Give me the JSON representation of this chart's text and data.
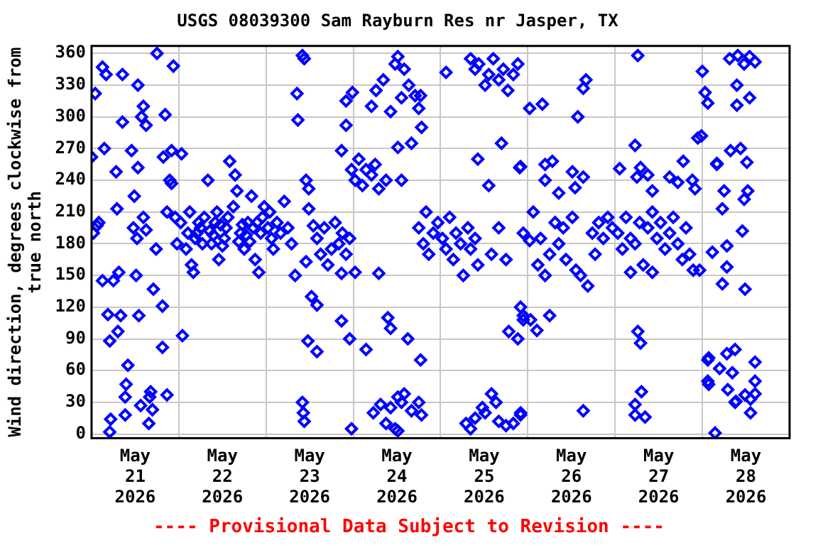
{
  "chart_data": {
    "type": "scatter",
    "title": "USGS 08039300 Sam Rayburn Res nr Jasper, TX",
    "ylabel": "Wind direction, degrees clockwise from true north",
    "annotations": [
      "---- Provisional Data Subject to Revision ----"
    ],
    "xlim": [
      "2026-05-21",
      "2026-05-29"
    ],
    "xticks": [
      {
        "value": "2026-05-21",
        "label": null
      },
      {
        "value": "2026-05-21T12:00",
        "label": "May 21 2026"
      },
      {
        "value": "2026-05-22",
        "label": null
      },
      {
        "value": "2026-05-22T12:00",
        "label": "May 22 2026"
      },
      {
        "value": "2026-05-23",
        "label": null
      },
      {
        "value": "2026-05-23T12:00",
        "label": "May 23 2026"
      },
      {
        "value": "2026-05-24",
        "label": null
      },
      {
        "value": "2026-05-24T12:00",
        "label": "May 24 2026"
      },
      {
        "value": "2026-05-25",
        "label": null
      },
      {
        "value": "2026-05-25T12:00",
        "label": "May 25 2026"
      },
      {
        "value": "2026-05-26",
        "label": null
      },
      {
        "value": "2026-05-26T12:00",
        "label": "May 26 2026"
      },
      {
        "value": "2026-05-27",
        "label": null
      },
      {
        "value": "2026-05-27T12:00",
        "label": "May 27 2026"
      },
      {
        "value": "2026-05-28",
        "label": null
      },
      {
        "value": "2026-05-28T12:00",
        "label": "May 28 2026"
      },
      {
        "value": "2026-05-29",
        "label": null
      }
    ],
    "ylim": [
      -4,
      367
    ],
    "yticks": [
      0,
      30,
      60,
      90,
      120,
      150,
      180,
      210,
      240,
      270,
      300,
      330,
      360
    ],
    "grid": true,
    "marker": "diamond",
    "series": [
      {
        "color": "#0000ff",
        "x": [
          "2026-05-21T00:00",
          "2026-05-21T00:30",
          "2026-05-21T01:00",
          "2026-05-21T01:30",
          "2026-05-21T02:00",
          "2026-05-21T03:00",
          "2026-05-21T03:00",
          "2026-05-21T03:30",
          "2026-05-21T04:00",
          "2026-05-21T04:30",
          "2026-05-21T05:00",
          "2026-05-21T05:00",
          "2026-05-21T05:15",
          "2026-05-21T06:00",
          "2026-05-21T06:45",
          "2026-05-21T07:00",
          "2026-05-21T07:15",
          "2026-05-21T07:30",
          "2026-05-21T08:00",
          "2026-05-21T08:30",
          "2026-05-21T08:30",
          "2026-05-21T09:15",
          "2026-05-21T09:15",
          "2026-05-21T09:30",
          "2026-05-21T10:00",
          "2026-05-21T11:00",
          "2026-05-21T11:30",
          "2026-05-21T11:45",
          "2026-05-21T12:15",
          "2026-05-21T12:30",
          "2026-05-21T12:45",
          "2026-05-21T12:45",
          "2026-05-21T13:00",
          "2026-05-21T13:30",
          "2026-05-21T13:45",
          "2026-05-21T14:15",
          "2026-05-21T14:15",
          "2026-05-21T15:00",
          "2026-05-21T15:00",
          "2026-05-21T15:45",
          "2026-05-21T16:00",
          "2026-05-21T16:15",
          "2026-05-21T16:45",
          "2026-05-21T17:00",
          "2026-05-21T17:45",
          "2026-05-21T18:00",
          "2026-05-21T19:30",
          "2026-05-21T19:30",
          "2026-05-21T19:45",
          "2026-05-21T20:15",
          "2026-05-21T20:45",
          "2026-05-21T20:45",
          "2026-05-21T21:30",
          "2026-05-21T22:00",
          "2026-05-21T22:00",
          "2026-05-21T22:30",
          "2026-05-21T23:00",
          "2026-05-21T23:30",
          "2026-05-22T00:30",
          "2026-05-22T00:45",
          "2026-05-22T01:00",
          "2026-05-22T02:00",
          "2026-05-22T02:30",
          "2026-05-22T03:00",
          "2026-05-22T03:30",
          "2026-05-22T04:00",
          "2026-05-22T04:30",
          "2026-05-22T05:00",
          "2026-05-22T05:30",
          "2026-05-22T06:00",
          "2026-05-22T06:30",
          "2026-05-22T07:00",
          "2026-05-22T08:00",
          "2026-05-22T08:30",
          "2026-05-22T09:00",
          "2026-05-22T09:30",
          "2026-05-22T10:00",
          "2026-05-22T10:30",
          "2026-05-22T11:00",
          "2026-05-22T11:30",
          "2026-05-22T12:00",
          "2026-05-22T12:30",
          "2026-05-22T13:00",
          "2026-05-22T13:30",
          "2026-05-22T14:00",
          "2026-05-22T15:00",
          "2026-05-22T15:30",
          "2026-05-22T16:00",
          "2026-05-22T16:30",
          "2026-05-22T17:00",
          "2026-05-22T17:30",
          "2026-05-22T18:00",
          "2026-05-22T18:30",
          "2026-05-22T19:00",
          "2026-05-22T19:30",
          "2026-05-22T20:00",
          "2026-05-22T20:30",
          "2026-05-22T21:00",
          "2026-05-22T21:30",
          "2026-05-22T22:00",
          "2026-05-22T22:30",
          "2026-05-22T23:00",
          "2026-05-22T23:30",
          "2026-05-23T00:30",
          "2026-05-23T01:00",
          "2026-05-23T01:30",
          "2026-05-23T02:00",
          "2026-05-23T03:00",
          "2026-05-23T04:00",
          "2026-05-23T05:00",
          "2026-05-23T06:00",
          "2026-05-23T07:00",
          "2026-05-23T08:00",
          "2026-05-23T08:30",
          "2026-05-23T08:45",
          "2026-05-23T10:00",
          "2026-05-23T10:00",
          "2026-05-23T10:15",
          "2026-05-23T10:30",
          "2026-05-23T10:30",
          "2026-05-23T11:00",
          "2026-05-23T11:00",
          "2026-05-23T11:30",
          "2026-05-23T11:45",
          "2026-05-23T11:45",
          "2026-05-23T12:30",
          "2026-05-23T13:00",
          "2026-05-23T14:00",
          "2026-05-23T14:00",
          "2026-05-23T14:00",
          "2026-05-23T15:00",
          "2026-05-23T16:00",
          "2026-05-23T17:00",
          "2026-05-23T18:00",
          "2026-05-23T19:00",
          "2026-05-23T20:00",
          "2026-05-23T20:45",
          "2026-05-23T20:45",
          "2026-05-23T20:45",
          "2026-05-23T21:00",
          "2026-05-23T22:00",
          "2026-05-23T22:00",
          "2026-05-23T22:00",
          "2026-05-23T23:00",
          "2026-05-23T23:00",
          "2026-05-23T23:30",
          "2026-05-23T23:30",
          "2026-05-23T23:45",
          "2026-05-24T00:30",
          "2026-05-24T00:30",
          "2026-05-24T01:30",
          "2026-05-24T02:30",
          "2026-05-24T03:30",
          "2026-05-24T03:30",
          "2026-05-24T05:00",
          "2026-05-24T05:00",
          "2026-05-24T05:30",
          "2026-05-24T06:00",
          "2026-05-24T06:15",
          "2026-05-24T07:00",
          "2026-05-24T07:00",
          "2026-05-24T07:30",
          "2026-05-24T08:15",
          "2026-05-24T09:00",
          "2026-05-24T09:00",
          "2026-05-24T09:30",
          "2026-05-24T10:15",
          "2026-05-24T10:15",
          "2026-05-24T10:15",
          "2026-05-24T11:30",
          "2026-05-24T11:30",
          "2026-05-24T12:15",
          "2026-05-24T12:15",
          "2026-05-24T12:15",
          "2026-05-24T12:15",
          "2026-05-24T13:15",
          "2026-05-24T13:15",
          "2026-05-24T13:15",
          "2026-05-24T14:00",
          "2026-05-24T14:00",
          "2026-05-24T15:00",
          "2026-05-24T15:15",
          "2026-05-24T16:00",
          "2026-05-24T16:00",
          "2026-05-24T17:00",
          "2026-05-24T18:00",
          "2026-05-24T18:00",
          "2026-05-24T18:00",
          "2026-05-24T18:30",
          "2026-05-24T18:30",
          "2026-05-24T18:45",
          "2026-05-24T18:45",
          "2026-05-24T19:15",
          "2026-05-24T20:00",
          "2026-05-24T20:45",
          "2026-05-24T22:00",
          "2026-05-24T23:15",
          "2026-05-25T00:30",
          "2026-05-25T01:30",
          "2026-05-25T01:30",
          "2026-05-25T02:30",
          "2026-05-25T03:30",
          "2026-05-25T04:15",
          "2026-05-25T05:30",
          "2026-05-25T06:15",
          "2026-05-25T07:00",
          "2026-05-25T07:30",
          "2026-05-25T08:15",
          "2026-05-25T08:15",
          "2026-05-25T08:15",
          "2026-05-25T09:30",
          "2026-05-25T09:30",
          "2026-05-25T09:30",
          "2026-05-25T10:15",
          "2026-05-25T10:15",
          "2026-05-25T10:30",
          "2026-05-25T11:30",
          "2026-05-25T12:15",
          "2026-05-25T12:15",
          "2026-05-25T13:15",
          "2026-05-25T13:15",
          "2026-05-25T14:00",
          "2026-05-25T14:00",
          "2026-05-25T14:30",
          "2026-05-25T15:15",
          "2026-05-25T16:00",
          "2026-05-25T16:00",
          "2026-05-25T16:00",
          "2026-05-25T16:45",
          "2026-05-25T17:15",
          "2026-05-25T18:00",
          "2026-05-25T18:00",
          "2026-05-25T18:30",
          "2026-05-25T18:45",
          "2026-05-25T20:00",
          "2026-05-25T20:00",
          "2026-05-25T21:15",
          "2026-05-25T21:15",
          "2026-05-25T21:45",
          "2026-05-25T22:00",
          "2026-05-25T22:00",
          "2026-05-25T22:00",
          "2026-05-25T22:00",
          "2026-05-25T22:45",
          "2026-05-25T22:45",
          "2026-05-25T22:45",
          "2026-05-26T00:30",
          "2026-05-26T00:30",
          "2026-05-26T00:45",
          "2026-05-26T01:30",
          "2026-05-26T02:30",
          "2026-05-26T02:45",
          "2026-05-26T03:30",
          "2026-05-26T04:00",
          "2026-05-26T04:45",
          "2026-05-26T04:45",
          "2026-05-26T04:45",
          "2026-05-26T06:00",
          "2026-05-26T06:00",
          "2026-05-26T06:45",
          "2026-05-26T07:30",
          "2026-05-26T08:30",
          "2026-05-26T08:30",
          "2026-05-26T09:45",
          "2026-05-26T10:30",
          "2026-05-26T12:15",
          "2026-05-26T12:15",
          "2026-05-26T13:00",
          "2026-05-26T13:15",
          "2026-05-26T13:45",
          "2026-05-26T14:30",
          "2026-05-26T15:15",
          "2026-05-26T15:15",
          "2026-05-26T15:15",
          "2026-05-26T16:00",
          "2026-05-26T16:30",
          "2026-05-26T17:45",
          "2026-05-26T18:30",
          "2026-05-26T19:30",
          "2026-05-26T20:45",
          "2026-05-26T22:00",
          "2026-05-26T23:15",
          "2026-05-27T00:45",
          "2026-05-27T01:15",
          "2026-05-27T02:00",
          "2026-05-27T03:00",
          "2026-05-27T04:15",
          "2026-05-27T04:15",
          "2026-05-27T05:30",
          "2026-05-27T05:30",
          "2026-05-27T05:30",
          "2026-05-27T05:30",
          "2026-05-27T06:00",
          "2026-05-27T06:15",
          "2026-05-27T06:15",
          "2026-05-27T06:45",
          "2026-05-27T07:00",
          "2026-05-27T07:00",
          "2026-05-27T07:15",
          "2026-05-27T07:45",
          "2026-05-27T08:15",
          "2026-05-27T09:00",
          "2026-05-27T09:00",
          "2026-05-27T10:15",
          "2026-05-27T10:15",
          "2026-05-27T10:15",
          "2026-05-27T11:30",
          "2026-05-27T12:30",
          "2026-05-27T13:45",
          "2026-05-27T15:00",
          "2026-05-27T15:00",
          "2026-05-27T16:00",
          "2026-05-27T17:15",
          "2026-05-27T17:15",
          "2026-05-27T18:30",
          "2026-05-27T18:45",
          "2026-05-27T19:30",
          "2026-05-27T20:30",
          "2026-05-27T21:15",
          "2026-05-27T21:30",
          "2026-05-27T22:00",
          "2026-05-27T22:45",
          "2026-05-27T23:15",
          "2026-05-27T23:45",
          "2026-05-28T00:00",
          "2026-05-28T00:45",
          "2026-05-28T01:30",
          "2026-05-28T01:30",
          "2026-05-28T01:45",
          "2026-05-28T01:30",
          "2026-05-28T01:45",
          "2026-05-28T02:45",
          "2026-05-28T03:30",
          "2026-05-28T04:00",
          "2026-05-28T04:00",
          "2026-05-28T04:45",
          "2026-05-28T05:30",
          "2026-05-28T05:30",
          "2026-05-28T06:00",
          "2026-05-28T06:45",
          "2026-05-28T06:45",
          "2026-05-28T06:45",
          "2026-05-28T07:00",
          "2026-05-28T07:30",
          "2026-05-28T07:45",
          "2026-05-28T08:15",
          "2026-05-28T09:00",
          "2026-05-28T09:00",
          "2026-05-28T09:15",
          "2026-05-28T09:30",
          "2026-05-28T09:30",
          "2026-05-28T09:45",
          "2026-05-28T10:30",
          "2026-05-28T11:00",
          "2026-05-28T11:30",
          "2026-05-28T11:30",
          "2026-05-28T11:45",
          "2026-05-28T11:45",
          "2026-05-28T12:15",
          "2026-05-28T12:30",
          "2026-05-28T13:00",
          "2026-05-28T13:00",
          "2026-05-28T13:15",
          "2026-05-28T13:15",
          "2026-05-28T14:30",
          "2026-05-28T14:30",
          "2026-05-28T14:30",
          "2026-05-28T14:30"
        ],
        "values": [
          262,
          190,
          322,
          197,
          200,
          347,
          145,
          270,
          340,
          113,
          88,
          2,
          14,
          145,
          248,
          213,
          97,
          153,
          112,
          295,
          340,
          35,
          18,
          47,
          65,
          268,
          195,
          225,
          150,
          185,
          252,
          330,
          112,
          27,
          300,
          310,
          205,
          292,
          193,
          10,
          35,
          40,
          23,
          137,
          175,
          360,
          121,
          82,
          262,
          302,
          37,
          210,
          240,
          237,
          268,
          348,
          205,
          180,
          200,
          265,
          93,
          175,
          190,
          210,
          160,
          153,
          185,
          190,
          200,
          195,
          180,
          205,
          240,
          192,
          180,
          188,
          200,
          210,
          165,
          198,
          178,
          185,
          195,
          205,
          258,
          215,
          245,
          230,
          182,
          190,
          198,
          175,
          188,
          200,
          182,
          225,
          195,
          165,
          200,
          153,
          190,
          205,
          215,
          195,
          210,
          185,
          175,
          200,
          190,
          220,
          195,
          180,
          150,
          322,
          297,
          358,
          30,
          20,
          355,
          12,
          163,
          240,
          88,
          232,
          213,
          130,
          197,
          78,
          122,
          185,
          170,
          195,
          160,
          175,
          200,
          180,
          107,
          268,
          152,
          190,
          170,
          292,
          315,
          185,
          90,
          5,
          250,
          323,
          153,
          240,
          260,
          235,
          250,
          80,
          245,
          310,
          20,
          255,
          325,
          232,
          152,
          28,
          335,
          240,
          10,
          110,
          305,
          25,
          100,
          350,
          5,
          357,
          271,
          35,
          3,
          318,
          240,
          30,
          345,
          38,
          90,
          330,
          275,
          22,
          320,
          308,
          30,
          195,
          70,
          320,
          290,
          18,
          180,
          210,
          170,
          190,
          200,
          185,
          175,
          342,
          205,
          165,
          190,
          180,
          150,
          10,
          195,
          175,
          355,
          5,
          185,
          345,
          15,
          160,
          260,
          350,
          25,
          330,
          20,
          235,
          340,
          38,
          170,
          355,
          30,
          335,
          12,
          195,
          275,
          345,
          8,
          165,
          325,
          97,
          340,
          10,
          350,
          90,
          252,
          18,
          253,
          120,
          20,
          108,
          190,
          112,
          308,
          183,
          108,
          210,
          98,
          160,
          185,
          312,
          255,
          240,
          150,
          112,
          170,
          258,
          200,
          228,
          180,
          195,
          165,
          248,
          205,
          233,
          155,
          300,
          150,
          327,
          22,
          243,
          335,
          140,
          190,
          170,
          200,
          185,
          205,
          195,
          190,
          251,
          175,
          205,
          185,
          153,
          180,
          28,
          18,
          273,
          243,
          97,
          358,
          200,
          252,
          86,
          40,
          160,
          16,
          195,
          245,
          210,
          230,
          153,
          185,
          200,
          175,
          190,
          243,
          205,
          180,
          238,
          165,
          258,
          195,
          170,
          240,
          155,
          232,
          280,
          155,
          282,
          343,
          323,
          313,
          70,
          72,
          50,
          47,
          172,
          1,
          256,
          255,
          62,
          213,
          142,
          230,
          178,
          158,
          76,
          42,
          355,
          268,
          58,
          80,
          30,
          31,
          330,
          311,
          358,
          270,
          192,
          350,
          222,
          137,
          37,
          257,
          230,
          357,
          318,
          33,
          20,
          352,
          68,
          50,
          38
        ]
      }
    ]
  }
}
